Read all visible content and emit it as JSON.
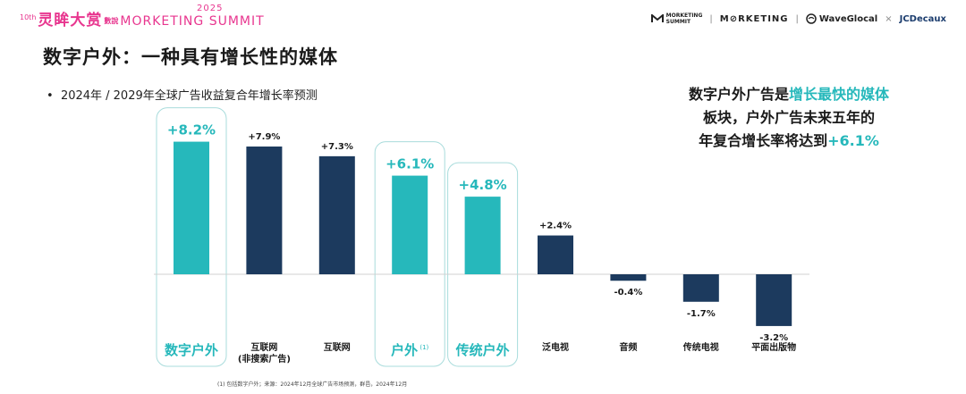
{
  "header": {
    "event_tenth": "10th",
    "event_cn": "灵眸大赏",
    "event_sub": "數說",
    "event_en": "MORKETING SUMMIT",
    "event_year": "2025",
    "logos": {
      "logo1_line1": "MORKETING",
      "logo1_line2": "SUMMIT",
      "logo2": "M⊘RKETING",
      "logo3": "WaveGlocal",
      "times": "×",
      "logo4": "JCDecaux"
    }
  },
  "title": "数字户外：一种具有增长性的媒体",
  "bullet": "2024年 / 2029年全球广告收益复合年增长率预测",
  "callout": {
    "line1_a": "数字户外广告是",
    "line1_b": "增长最快的媒体",
    "line2": "板块，户外广告未来五年的",
    "line3_a": "年复合增长率将达到",
    "line3_b": "+6.1%"
  },
  "footnote": "(1) 包括数字户外；来源：2024年12月全球广告市场预测，群邑，2024年12月",
  "colors": {
    "teal": "#26b8bb",
    "navy": "#1c3a5e",
    "highlight_border": "#a9dcdc"
  },
  "chart_data": {
    "type": "bar",
    "categories": [
      "数字户外",
      "互联网\n(非搜索广告)",
      "互联网",
      "户外",
      "传统户外",
      "泛电视",
      "音频",
      "传统电视",
      "平面出版物"
    ],
    "category_superscripts": [
      "",
      "",
      "",
      "(1)",
      "",
      "",
      "",
      "",
      ""
    ],
    "values": [
      8.2,
      7.9,
      7.3,
      6.1,
      4.8,
      2.4,
      -0.4,
      -1.7,
      -3.2
    ],
    "value_labels": [
      "+8.2%",
      "+7.9%",
      "+7.3%",
      "+6.1%",
      "+4.8%",
      "+2.4%",
      "-0.4%",
      "-1.7%",
      "-3.2%"
    ],
    "highlighted": [
      true,
      false,
      false,
      true,
      true,
      false,
      false,
      false,
      false
    ],
    "ylim": [
      -3.2,
      8.2
    ],
    "title": "",
    "xlabel": "",
    "ylabel": ""
  }
}
